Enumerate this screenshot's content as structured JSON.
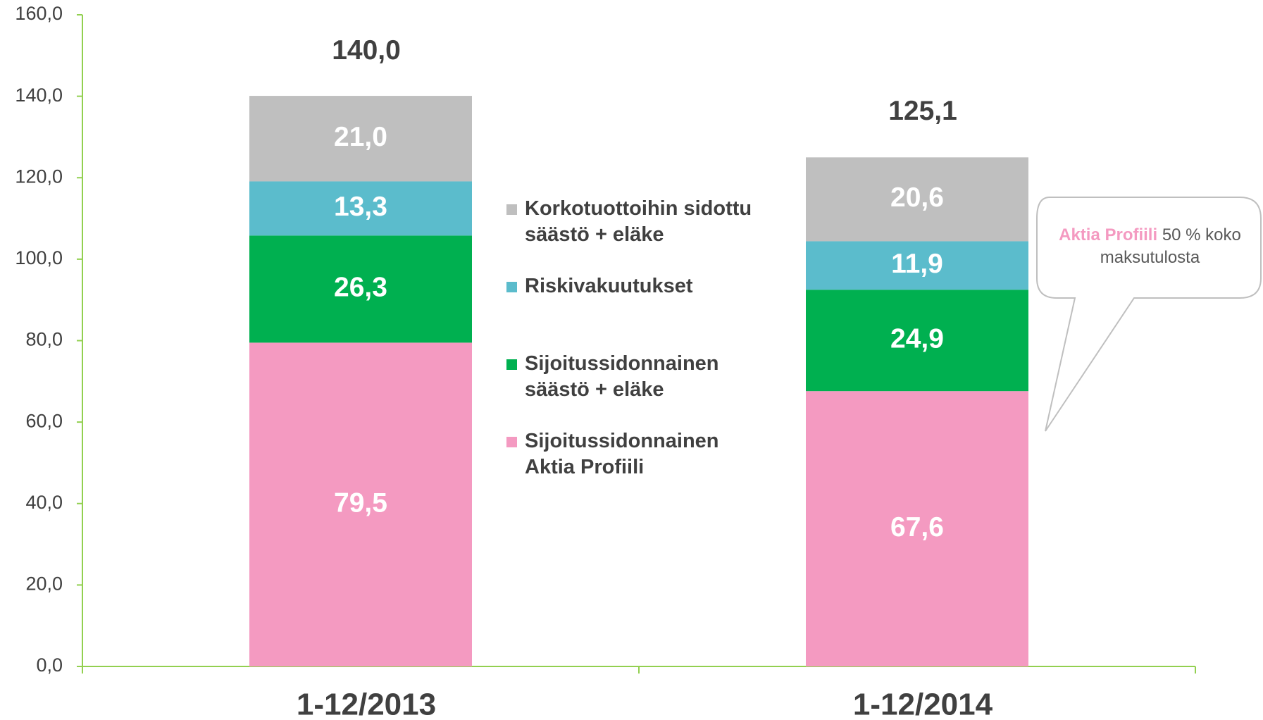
{
  "chart_data": {
    "type": "stacked_bar",
    "categories": [
      "1-12/2013",
      "1-12/2014"
    ],
    "series": [
      {
        "name": "Sijoitussidonnainen Aktia Profiili",
        "color": "#f49ac1",
        "values": [
          79.5,
          67.6
        ],
        "value_labels": [
          "79,5",
          "67,6"
        ]
      },
      {
        "name": "Sijoitussidonnainen säästö + eläke",
        "color": "#00b050",
        "values": [
          26.3,
          24.9
        ],
        "value_labels": [
          "26,3",
          "24,9"
        ]
      },
      {
        "name": "Riskivakuutukset",
        "color": "#5bbccc",
        "values": [
          13.3,
          11.9
        ],
        "value_labels": [
          "13,3",
          "11,9"
        ]
      },
      {
        "name": "Korkotuottoihin sidottu säästö + eläke",
        "color": "#bfbfbf",
        "values": [
          21.0,
          20.6
        ],
        "value_labels": [
          "21,0",
          "20,6"
        ]
      }
    ],
    "totals": [
      140.0,
      125.1
    ],
    "total_labels": [
      "140,0",
      "125,1"
    ],
    "ylim": [
      0,
      160
    ],
    "yticks": [
      {
        "value": 0,
        "label": "0,0"
      },
      {
        "value": 20,
        "label": "20,0"
      },
      {
        "value": 40,
        "label": "40,0"
      },
      {
        "value": 60,
        "label": "60,0"
      },
      {
        "value": 80,
        "label": "80,0"
      },
      {
        "value": 100,
        "label": "100,0"
      },
      {
        "value": 120,
        "label": "120,0"
      },
      {
        "value": 140,
        "label": "140,0"
      },
      {
        "value": 160,
        "label": "160,0"
      }
    ],
    "annotation": {
      "highlight": "Aktia Profiili",
      "text": "50 % koko maksutulosta"
    }
  }
}
